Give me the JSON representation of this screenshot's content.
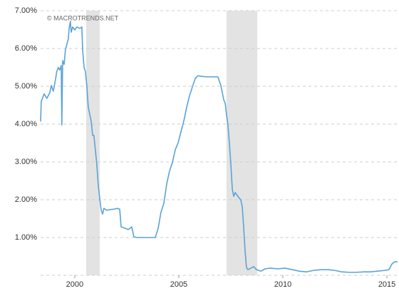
{
  "chart_data": {
    "type": "line",
    "watermark": "© MACROTRENDS.NET",
    "color": "#5ba3d6",
    "shade_color": "#e3e3e3",
    "recessions": [
      [
        2000.55,
        2001.2
      ],
      [
        2007.29,
        2008.77
      ]
    ],
    "x": [
      1998.36,
      1998.39,
      1998.53,
      1998.66,
      1998.8,
      1998.87,
      1998.97,
      1999.08,
      1999.14,
      1999.21,
      1999.28,
      1999.35,
      1999.38,
      1999.42,
      1999.49,
      1999.55,
      1999.62,
      1999.69,
      1999.73,
      1999.79,
      1999.83,
      1999.9,
      2000.0,
      2000.1,
      2000.24,
      2000.34,
      2000.38,
      2000.45,
      2000.51,
      2000.58,
      2000.65,
      2000.72,
      2000.79,
      2000.86,
      2000.92,
      2000.99,
      2001.06,
      2001.13,
      2001.2,
      2001.27,
      2001.34,
      2001.4,
      2001.54,
      2001.71,
      2001.88,
      2002.05,
      2002.16,
      2002.23,
      2002.4,
      2002.57,
      2002.74,
      2002.84,
      2002.98,
      2003.25,
      2003.6,
      2003.87,
      2004.01,
      2004.14,
      2004.28,
      2004.42,
      2004.55,
      2004.69,
      2004.83,
      2004.97,
      2005.1,
      2005.24,
      2005.38,
      2005.51,
      2005.65,
      2005.79,
      2005.92,
      2006.13,
      2006.34,
      2006.54,
      2006.75,
      2006.88,
      2007.02,
      2007.09,
      2007.16,
      2007.23,
      2007.29,
      2007.36,
      2007.43,
      2007.5,
      2007.57,
      2007.64,
      2007.71,
      2007.84,
      2007.98,
      2008.05,
      2008.12,
      2008.18,
      2008.25,
      2008.32,
      2008.46,
      2008.6,
      2008.73,
      2008.94,
      2009.14,
      2009.42,
      2009.76,
      2010.1,
      2010.45,
      2010.79,
      2011.13,
      2011.47,
      2011.82,
      2012.16,
      2012.5,
      2012.84,
      2013.18,
      2013.53,
      2013.87,
      2014.21,
      2014.55,
      2014.9,
      2015.1,
      2015.24,
      2015.38,
      2015.51
    ],
    "values": [
      4.07,
      4.6,
      4.8,
      4.68,
      4.83,
      5.02,
      4.87,
      5.2,
      5.4,
      5.5,
      5.43,
      5.55,
      3.98,
      5.68,
      5.58,
      5.96,
      6.11,
      6.25,
      6.53,
      6.72,
      6.43,
      6.57,
      6.49,
      6.57,
      6.53,
      6.57,
      5.96,
      5.49,
      5.4,
      5.02,
      4.45,
      4.26,
      4.08,
      3.7,
      3.7,
      3.32,
      2.94,
      2.38,
      2.04,
      1.72,
      1.62,
      1.77,
      1.72,
      1.74,
      1.75,
      1.77,
      1.75,
      1.28,
      1.25,
      1.21,
      1.28,
      1.02,
      1.0,
      1.0,
      1.0,
      1.0,
      1.25,
      1.66,
      1.9,
      2.42,
      2.75,
      2.98,
      3.32,
      3.51,
      3.79,
      4.08,
      4.45,
      4.74,
      4.98,
      5.21,
      5.28,
      5.26,
      5.25,
      5.25,
      5.25,
      5.25,
      5.02,
      4.83,
      4.64,
      4.55,
      4.26,
      3.98,
      3.51,
      2.94,
      2.28,
      2.09,
      2.19,
      2.09,
      1.99,
      1.81,
      1.25,
      0.68,
      0.21,
      0.15,
      0.19,
      0.23,
      0.15,
      0.11,
      0.17,
      0.19,
      0.17,
      0.19,
      0.15,
      0.11,
      0.09,
      0.13,
      0.15,
      0.15,
      0.13,
      0.09,
      0.08,
      0.08,
      0.09,
      0.09,
      0.11,
      0.13,
      0.15,
      0.3,
      0.36,
      0.36
    ],
    "xlim": [
      1998.36,
      2015.58
    ],
    "xticks": [
      2000,
      2005,
      2010,
      2015
    ],
    "ylim": [
      0,
      7
    ],
    "yticks": [
      {
        "value": 1,
        "label": "1.00%"
      },
      {
        "value": 2,
        "label": "2.00%"
      },
      {
        "value": 3,
        "label": "3.00%"
      },
      {
        "value": 4,
        "label": "4.00%"
      },
      {
        "value": 5,
        "label": "5.00%"
      },
      {
        "value": 6,
        "label": "6.00%"
      },
      {
        "value": 7,
        "label": "7.00%"
      }
    ],
    "grid": true
  }
}
